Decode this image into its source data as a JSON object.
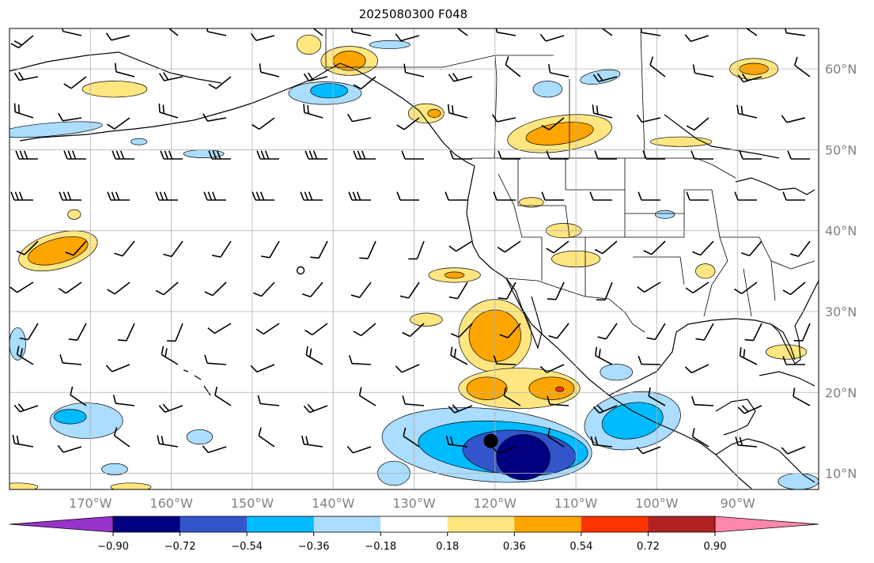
{
  "title": "2025080300 F048",
  "map": {
    "projection": "PlateCarree",
    "lon_range": [
      -180,
      -80
    ],
    "lat_range": [
      8,
      65
    ],
    "gridlines": true,
    "lat_ticks": [
      {
        "value": 10,
        "label": "10°N"
      },
      {
        "value": 20,
        "label": "20°N"
      },
      {
        "value": 30,
        "label": "30°N"
      },
      {
        "value": 40,
        "label": "40°N"
      },
      {
        "value": 50,
        "label": "50°N"
      },
      {
        "value": 60,
        "label": "60°N"
      }
    ],
    "lon_ticks": [
      {
        "value": -170,
        "label": "170°W"
      },
      {
        "value": -160,
        "label": "160°W"
      },
      {
        "value": -150,
        "label": "150°W"
      },
      {
        "value": -140,
        "label": "140°W"
      },
      {
        "value": -130,
        "label": "130°W"
      },
      {
        "value": -120,
        "label": "120°W"
      },
      {
        "value": -110,
        "label": "110°W"
      },
      {
        "value": -100,
        "label": "100°W"
      },
      {
        "value": -90,
        "label": "90°W"
      }
    ],
    "tc_marker": {
      "lon": -120.5,
      "lat": 14.0
    }
  },
  "colorbar": {
    "orientation": "horizontal",
    "extend": "both",
    "under_color": "#9933cc",
    "over_color": "#ff88aa",
    "colors": [
      "#000080",
      "#3355cc",
      "#00bbff",
      "#aaddff",
      "#ffffff",
      "#ffe680",
      "#ffa500",
      "#ff3300",
      "#b22222"
    ],
    "tick_labels": [
      "−0.90",
      "−0.72",
      "−0.54",
      "−0.36",
      "−0.18",
      "0.18",
      "0.36",
      "0.54",
      "0.72",
      "0.90"
    ]
  },
  "fields": [
    {
      "level": 0.18,
      "color": "#ffe680",
      "lon": -174,
      "lat": 37.5,
      "rlon": 5,
      "rlat": 2.2,
      "rot": -15
    },
    {
      "level": 0.36,
      "color": "#ffa500",
      "lon": -174,
      "lat": 37.5,
      "rlon": 3.8,
      "rlat": 1.5,
      "rot": -15
    },
    {
      "level": 0.18,
      "color": "#ffe680",
      "lon": -125,
      "lat": 34.5,
      "rlon": 3.2,
      "rlat": 0.9,
      "rot": 0
    },
    {
      "level": 0.36,
      "color": "#ffa500",
      "lon": -125,
      "lat": 34.5,
      "rlon": 1.2,
      "rlat": 0.4,
      "rot": 0
    },
    {
      "level": 0.18,
      "color": "#ffe680",
      "lon": -120,
      "lat": 27,
      "rlon": 4.5,
      "rlat": 4.5,
      "rot": 0
    },
    {
      "level": 0.36,
      "color": "#ffa500",
      "lon": -120,
      "lat": 27,
      "rlon": 3.2,
      "rlat": 3.2,
      "rot": 0
    },
    {
      "level": 0.18,
      "color": "#ffe680",
      "lon": -117,
      "lat": 20.5,
      "rlon": 7.5,
      "rlat": 2.5,
      "rot": 0
    },
    {
      "level": 0.36,
      "color": "#ffa500",
      "lon": -121,
      "lat": 20.5,
      "rlon": 2.5,
      "rlat": 1.4,
      "rot": 0
    },
    {
      "level": 0.36,
      "color": "#ffa500",
      "lon": -113,
      "lat": 20.5,
      "rlon": 2.8,
      "rlat": 1.4,
      "rot": 0
    },
    {
      "level": 0.54,
      "color": "#ff3300",
      "lon": -112,
      "lat": 20.4,
      "rlon": 0.5,
      "rlat": 0.3,
      "rot": 0
    },
    {
      "level": 0.18,
      "color": "#ffe680",
      "lon": -128.5,
      "lat": 29,
      "rlon": 2,
      "rlat": 0.8,
      "rot": 0
    },
    {
      "level": 0.18,
      "color": "#ffe680",
      "lon": -112,
      "lat": 52,
      "rlon": 6.5,
      "rlat": 2.2,
      "rot": -8
    },
    {
      "level": 0.36,
      "color": "#ffa500",
      "lon": -112,
      "lat": 52,
      "rlon": 4.2,
      "rlat": 1.3,
      "rot": -8
    },
    {
      "level": 0.18,
      "color": "#ffe680",
      "lon": -138,
      "lat": 61,
      "rlon": 3.5,
      "rlat": 1.8,
      "rot": 0
    },
    {
      "level": 0.36,
      "color": "#ffa500",
      "lon": -138,
      "lat": 61,
      "rlon": 2,
      "rlat": 1.2,
      "rot": 0
    },
    {
      "level": 0.18,
      "color": "#ffe680",
      "lon": -143,
      "lat": 63,
      "rlon": 1.5,
      "rlat": 1.2,
      "rot": 0
    },
    {
      "level": 0.18,
      "color": "#ffe680",
      "lon": -167,
      "lat": 57.5,
      "rlon": 4,
      "rlat": 1,
      "rot": 0
    },
    {
      "level": 0.18,
      "color": "#ffe680",
      "lon": -128.5,
      "lat": 54.5,
      "rlon": 2.2,
      "rlat": 1.2,
      "rot": 0
    },
    {
      "level": 0.36,
      "color": "#ffa500",
      "lon": -127.5,
      "lat": 54.5,
      "rlon": 0.8,
      "rlat": 0.5,
      "rot": 0
    },
    {
      "level": 0.18,
      "color": "#ffe680",
      "lon": -88,
      "lat": 60,
      "rlon": 3,
      "rlat": 1.3,
      "rot": 0
    },
    {
      "level": 0.36,
      "color": "#ffa500",
      "lon": -88,
      "lat": 60,
      "rlon": 1.8,
      "rlat": 0.7,
      "rot": 0
    },
    {
      "level": 0.18,
      "color": "#ffe680",
      "lon": -110,
      "lat": 36.5,
      "rlon": 3,
      "rlat": 1,
      "rot": 0
    },
    {
      "level": 0.18,
      "color": "#ffe680",
      "lon": -111.5,
      "lat": 40,
      "rlon": 2.2,
      "rlat": 0.9,
      "rot": 0
    },
    {
      "level": 0.18,
      "color": "#ffe680",
      "lon": -115.5,
      "lat": 43.5,
      "rlon": 1.5,
      "rlat": 0.6,
      "rot": 0
    },
    {
      "level": 0.18,
      "color": "#ffe680",
      "lon": -97,
      "lat": 51,
      "rlon": 3.8,
      "rlat": 0.6,
      "rot": 0
    },
    {
      "level": 0.18,
      "color": "#ffe680",
      "lon": -94,
      "lat": 35,
      "rlon": 1.2,
      "rlat": 0.9,
      "rot": 0
    },
    {
      "level": 0.18,
      "color": "#ffe680",
      "lon": -84,
      "lat": 25,
      "rlon": 2.5,
      "rlat": 0.9,
      "rot": 0
    },
    {
      "level": 0.18,
      "color": "#ffe680",
      "lon": -179,
      "lat": 8.3,
      "rlon": 2.5,
      "rlat": 0.5,
      "rot": 0
    },
    {
      "level": 0.18,
      "color": "#ffe680",
      "lon": -165,
      "lat": 8.3,
      "rlon": 2.5,
      "rlat": 0.5,
      "rot": 0
    },
    {
      "level": 0.18,
      "color": "#ffe680",
      "lon": -172,
      "lat": 42,
      "rlon": 0.8,
      "rlat": 0.6,
      "rot": 0
    },
    {
      "level": -0.18,
      "color": "#aaddff",
      "lon": -121,
      "lat": 13.5,
      "rlon": 13,
      "rlat": 4.5,
      "rot": 5
    },
    {
      "level": -0.36,
      "color": "#00bbff",
      "lon": -119,
      "lat": 13.2,
      "rlon": 10.5,
      "rlat": 3.2,
      "rot": 4
    },
    {
      "level": -0.54,
      "color": "#3355cc",
      "lon": -117,
      "lat": 12.5,
      "rlon": 7,
      "rlat": 2.8,
      "rot": 4
    },
    {
      "level": -0.72,
      "color": "#000080",
      "lon": -116.5,
      "lat": 12,
      "rlon": 3.3,
      "rlat": 2.8,
      "rot": 0
    },
    {
      "level": -0.18,
      "color": "#aaddff",
      "lon": -103,
      "lat": 16.5,
      "rlon": 6,
      "rlat": 3.5,
      "rot": -10
    },
    {
      "level": -0.36,
      "color": "#00bbff",
      "lon": -103,
      "lat": 16.5,
      "rlon": 3.8,
      "rlat": 2.2,
      "rot": -10
    },
    {
      "level": -0.18,
      "color": "#aaddff",
      "lon": -170.5,
      "lat": 16.5,
      "rlon": 4.5,
      "rlat": 2.2,
      "rot": 0
    },
    {
      "level": -0.36,
      "color": "#00bbff",
      "lon": -172.5,
      "lat": 17,
      "rlon": 2,
      "rlat": 0.9,
      "rot": 0
    },
    {
      "level": -0.18,
      "color": "#aaddff",
      "lon": -141,
      "lat": 57,
      "rlon": 4.5,
      "rlat": 1.4,
      "rot": 0
    },
    {
      "level": -0.36,
      "color": "#00bbff",
      "lon": -140.5,
      "lat": 57.3,
      "rlon": 2.3,
      "rlat": 0.9,
      "rot": 0
    },
    {
      "level": -0.18,
      "color": "#aaddff",
      "lon": -175,
      "lat": 52.5,
      "rlon": 6.5,
      "rlat": 0.8,
      "rot": -5
    },
    {
      "level": -0.18,
      "color": "#aaddff",
      "lon": -107,
      "lat": 59,
      "rlon": 2.5,
      "rlat": 0.8,
      "rot": -10
    },
    {
      "level": -0.18,
      "color": "#aaddff",
      "lon": -113.5,
      "lat": 57.5,
      "rlon": 1.8,
      "rlat": 1,
      "rot": 0
    },
    {
      "level": -0.18,
      "color": "#aaddff",
      "lon": -156,
      "lat": 49.5,
      "rlon": 2.5,
      "rlat": 0.5,
      "rot": 0
    },
    {
      "level": -0.18,
      "color": "#aaddff",
      "lon": -179,
      "lat": 26,
      "rlon": 1,
      "rlat": 2,
      "rot": 0
    },
    {
      "level": -0.18,
      "color": "#aaddff",
      "lon": -105,
      "lat": 22.5,
      "rlon": 2,
      "rlat": 1,
      "rot": 0
    },
    {
      "level": -0.18,
      "color": "#aaddff",
      "lon": -156.5,
      "lat": 14.5,
      "rlon": 1.6,
      "rlat": 0.9,
      "rot": 0
    },
    {
      "level": -0.18,
      "color": "#aaddff",
      "lon": -167,
      "lat": 10.5,
      "rlon": 1.6,
      "rlat": 0.7,
      "rot": 0
    },
    {
      "level": -0.18,
      "color": "#aaddff",
      "lon": -132.5,
      "lat": 10,
      "rlon": 2,
      "rlat": 1.5,
      "rot": 0
    },
    {
      "level": -0.18,
      "color": "#aaddff",
      "lon": -82.5,
      "lat": 9,
      "rlon": 2.5,
      "rlat": 1,
      "rot": 0
    },
    {
      "level": -0.18,
      "color": "#aaddff",
      "lon": -99,
      "lat": 42,
      "rlon": 1.2,
      "rlat": 0.5,
      "rot": 0
    },
    {
      "level": -0.18,
      "color": "#aaddff",
      "lon": -133,
      "lat": 63,
      "rlon": 2.5,
      "rlat": 0.5,
      "rot": 0
    },
    {
      "level": -0.18,
      "color": "#aaddff",
      "lon": -164,
      "lat": 51,
      "rlon": 1,
      "rlat": 0.4,
      "rot": 0
    }
  ]
}
